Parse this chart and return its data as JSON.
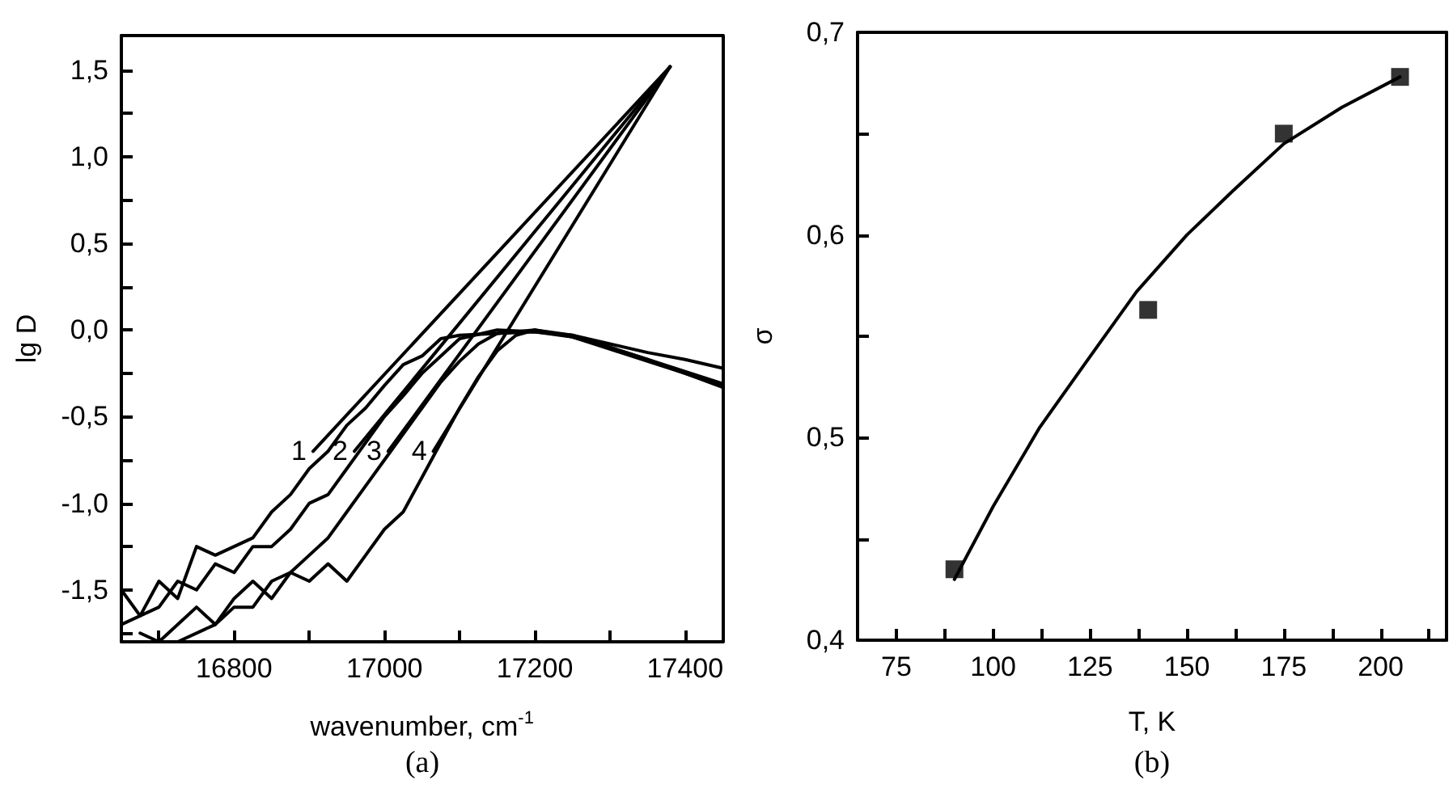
{
  "chart_data": [
    {
      "type": "line",
      "xlabel": "wavenumber, cm$^{-1}$",
      "ylabel": "lg D",
      "xlim": [
        16650,
        17450
      ],
      "ylim": [
        -1.8,
        1.7
      ],
      "xticks": [
        {
          "value": 16700,
          "label": null
        },
        16800,
        {
          "value": 16900,
          "label": null
        },
        17000,
        {
          "value": 17100,
          "label": null
        },
        17200,
        {
          "value": 17300,
          "label": null
        },
        17400
      ],
      "yticks": [
        {
          "value": -1.75,
          "label": null
        },
        {
          "value": -1.5,
          "label": "-1,5"
        },
        {
          "value": -1.25,
          "label": null
        },
        {
          "value": -1.0,
          "label": "-1,0"
        },
        {
          "value": -0.75,
          "label": null
        },
        {
          "value": -0.5,
          "label": "-0,5"
        },
        {
          "value": -0.25,
          "label": null
        },
        {
          "value": 0,
          "label": "0,0"
        },
        {
          "value": 0.25,
          "label": null
        },
        {
          "value": 0.5,
          "label": "0,5"
        },
        {
          "value": 0.75,
          "label": null
        },
        {
          "value": 1.0,
          "label": "1,0"
        },
        {
          "value": 1.25,
          "label": null
        },
        {
          "value": 1.5,
          "label": "1,5"
        }
      ],
      "grid": false,
      "marker": "none",
      "series": [
        {
          "color": "#000000",
          "x": [
            16650,
            16675,
            16700,
            16725,
            16750,
            16775,
            16800,
            16825,
            16850,
            16875,
            16900,
            16925,
            16950,
            16975,
            17000,
            17025,
            17050,
            17075,
            17100,
            17150,
            17200,
            17250,
            17300,
            17350,
            17400,
            17450
          ],
          "values": [
            -1.5,
            -1.65,
            -1.45,
            -1.55,
            -1.25,
            -1.3,
            -1.25,
            -1.2,
            -1.05,
            -0.95,
            -0.8,
            -0.7,
            -0.55,
            -0.45,
            -0.32,
            -0.2,
            -0.15,
            -0.05,
            -0.03,
            -0.02,
            -0.01,
            -0.03,
            -0.08,
            -0.13,
            -0.17,
            -0.22
          ]
        },
        {
          "color": "#000000",
          "x": [
            16650,
            16700,
            16725,
            16750,
            16775,
            16800,
            16825,
            16850,
            16875,
            16900,
            16925,
            16950,
            16975,
            17000,
            17025,
            17050,
            17075,
            17100,
            17150,
            17200,
            17250,
            17300,
            17350,
            17400,
            17450
          ],
          "values": [
            -1.7,
            -1.6,
            -1.45,
            -1.5,
            -1.35,
            -1.4,
            -1.25,
            -1.25,
            -1.15,
            -1.0,
            -0.95,
            -0.8,
            -0.65,
            -0.5,
            -0.38,
            -0.25,
            -0.15,
            -0.05,
            0.0,
            -0.01,
            -0.04,
            -0.1,
            -0.17,
            -0.24,
            -0.31
          ]
        },
        {
          "color": "#000000",
          "x": [
            16675,
            16700,
            16750,
            16775,
            16800,
            16825,
            16850,
            16875,
            16900,
            16925,
            16950,
            16975,
            17000,
            17025,
            17050,
            17075,
            17100,
            17125,
            17150,
            17200,
            17250,
            17300,
            17350,
            17400,
            17450
          ],
          "values": [
            -1.75,
            -1.8,
            -1.6,
            -1.7,
            -1.55,
            -1.45,
            -1.55,
            -1.4,
            -1.3,
            -1.2,
            -1.05,
            -0.9,
            -0.75,
            -0.6,
            -0.45,
            -0.3,
            -0.18,
            -0.08,
            -0.02,
            0.0,
            -0.04,
            -0.11,
            -0.18,
            -0.25,
            -0.32
          ]
        },
        {
          "color": "#000000",
          "x": [
            16725,
            16775,
            16800,
            16825,
            16850,
            16875,
            16900,
            16925,
            16950,
            16975,
            17000,
            17025,
            17050,
            17075,
            17100,
            17125,
            17150,
            17175,
            17200,
            17250,
            17300,
            17350,
            17400,
            17450
          ],
          "values": [
            -1.8,
            -1.7,
            -1.6,
            -1.6,
            -1.45,
            -1.4,
            -1.45,
            -1.35,
            -1.45,
            -1.3,
            -1.15,
            -1.05,
            -0.85,
            -0.65,
            -0.45,
            -0.27,
            -0.12,
            -0.03,
            0.0,
            -0.03,
            -0.1,
            -0.17,
            -0.25,
            -0.33
          ]
        },
        {
          "name": "1",
          "color": "#000000",
          "x": [
            16905,
            17380
          ],
          "values": [
            -0.7,
            1.52
          ]
        },
        {
          "name": "2",
          "color": "#000000",
          "x": [
            16960,
            17380
          ],
          "values": [
            -0.7,
            1.52
          ]
        },
        {
          "name": "3",
          "color": "#000000",
          "x": [
            17005,
            17380
          ],
          "values": [
            -0.7,
            1.52
          ]
        },
        {
          "name": "4",
          "color": "#000000",
          "x": [
            17065,
            17380
          ],
          "values": [
            -0.7,
            1.52
          ]
        }
      ],
      "annotations": [
        "(a)"
      ]
    },
    {
      "type": "scatter",
      "xlabel": "T, K",
      "ylabel": "σ",
      "xlim": [
        65,
        217
      ],
      "ylim": [
        0.4,
        0.7
      ],
      "xticks": [
        75,
        {
          "value": 87.5,
          "label": null
        },
        100,
        {
          "value": 112.5,
          "label": null
        },
        125,
        {
          "value": 137.5,
          "label": null
        },
        150,
        {
          "value": 162.5,
          "label": null
        },
        175,
        {
          "value": 187.5,
          "label": null
        },
        200,
        {
          "value": 212.5,
          "label": null
        }
      ],
      "yticks": [
        {
          "value": 0.4,
          "label": "0,4"
        },
        {
          "value": 0.45,
          "label": null
        },
        {
          "value": 0.5,
          "label": "0,5"
        },
        {
          "value": 0.55,
          "label": null
        },
        {
          "value": 0.6,
          "label": "0,6"
        },
        {
          "value": 0.65,
          "label": null
        },
        {
          "value": 0.7,
          "label": "0,7"
        }
      ],
      "grid": false,
      "marker": "square",
      "series": [
        {
          "color": "#000000",
          "x": [
            90,
            140,
            175,
            205
          ],
          "values": [
            0.435,
            0.563,
            0.65,
            0.678
          ]
        },
        {
          "type": "line",
          "marker": "none",
          "color": "#000000",
          "x": [
            90,
            100,
            112,
            125,
            137,
            150,
            162,
            175,
            190,
            205
          ],
          "values": [
            0.43,
            0.466,
            0.505,
            0.54,
            0.572,
            0.6,
            0.622,
            0.645,
            0.663,
            0.678
          ]
        }
      ],
      "annotations": [
        "(b)"
      ]
    }
  ]
}
